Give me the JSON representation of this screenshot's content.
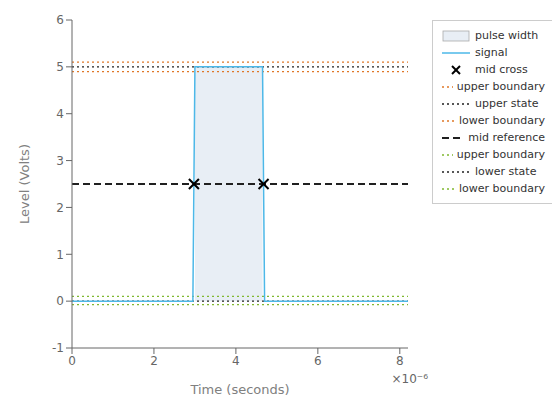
{
  "chart_data": {
    "type": "line",
    "xlabel": "Time (seconds)",
    "ylabel": "Level (Volts)",
    "annotation": "×10⁻⁶",
    "xlim": [
      0,
      8.2e-06
    ],
    "ylim": [
      -1,
      6
    ],
    "xticks": [
      0,
      {
        "value": 2e-06,
        "label": "2"
      },
      {
        "value": 4e-06,
        "label": "4"
      },
      {
        "value": 6e-06,
        "label": "6"
      },
      {
        "value": 8e-06,
        "label": "8"
      }
    ],
    "yticks": [
      -1,
      0,
      1,
      2,
      3,
      4,
      5,
      6
    ],
    "grid": false,
    "legend": "upper right",
    "series": [
      {
        "name": "pulse width",
        "type": "area",
        "color": "#e8eef5",
        "x": [
          3e-06,
          4.65e-06
        ],
        "low": [
          0,
          0
        ],
        "values": [
          5.0,
          5.0
        ]
      },
      {
        "name": "signal",
        "type": "line",
        "color": "#4db8e8",
        "line_style": "solid",
        "x": [
          0,
          2.95e-06,
          2.95e-06,
          3e-06,
          3e-06,
          4.65e-06,
          4.65e-06,
          4.7e-06,
          4.7e-06,
          8.2e-06
        ],
        "values": [
          0,
          0,
          0,
          5,
          5,
          5,
          5,
          0,
          0,
          0
        ]
      },
      {
        "name": "mid cross",
        "type": "scatter",
        "color": "black",
        "marker": "x",
        "x": [
          2.975e-06,
          4.675e-06
        ],
        "values": [
          2.5,
          2.5
        ]
      },
      {
        "name": "upper boundary",
        "type": "hline",
        "color": "#e07828",
        "line_style": "dotted",
        "value": 5.1
      },
      {
        "name": "upper state",
        "type": "hline",
        "color": "#202020",
        "line_style": "dotted",
        "value": 5.0
      },
      {
        "name": "lower boundary",
        "type": "hline",
        "color": "#e07828",
        "line_style": "dotted",
        "value": 4.9
      },
      {
        "name": "mid reference",
        "type": "hline",
        "color": "#202020",
        "line_style": "dashed",
        "value": 2.5
      },
      {
        "name": "upper boundary",
        "type": "hline",
        "color": "#80b830",
        "line_style": "dotted",
        "value": 0.1
      },
      {
        "name": "lower state",
        "type": "hline",
        "color": "#202020",
        "line_style": "dotted",
        "value": 0.0
      },
      {
        "name": "lower boundary",
        "type": "hline",
        "color": "#80b830",
        "line_style": "dotted",
        "value": -0.075
      }
    ]
  }
}
